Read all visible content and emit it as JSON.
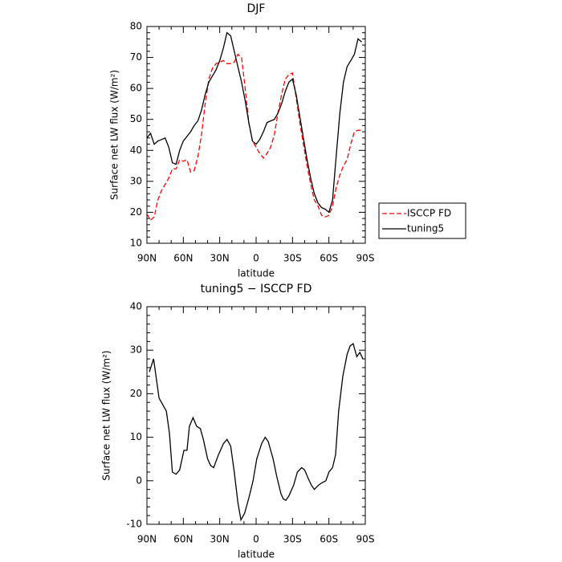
{
  "chart_data": [
    {
      "type": "line",
      "title": "DJF",
      "xlabel": "latitude",
      "ylabel": "Surface net LW flux (W/m²)",
      "xlim": [
        90,
        -90
      ],
      "ylim": [
        10,
        80
      ],
      "xticks": [
        {
          "value": 90,
          "label": "90N"
        },
        {
          "value": 60,
          "label": "60N"
        },
        {
          "value": 30,
          "label": "30N"
        },
        0,
        {
          "value": -30,
          "label": "30S"
        },
        {
          "value": -60,
          "label": "60S"
        },
        {
          "value": -90,
          "label": "90S"
        }
      ],
      "yticks": [
        10,
        20,
        30,
        40,
        50,
        60,
        70,
        80
      ],
      "legend": "right",
      "x": [
        90,
        87,
        84,
        81,
        78,
        75,
        72,
        69,
        66,
        63,
        60,
        57,
        54,
        51,
        48,
        45,
        42,
        39,
        36,
        33,
        30,
        27,
        24,
        21,
        18,
        15,
        12,
        9,
        6,
        3,
        0,
        -3,
        -6,
        -9,
        -12,
        -15,
        -18,
        -21,
        -24,
        -27,
        -30,
        -33,
        -36,
        -39,
        -42,
        -45,
        -48,
        -51,
        -54,
        -57,
        -60,
        -63,
        -66,
        -69,
        -72,
        -75,
        -78,
        -81,
        -84,
        -87
      ],
      "series": [
        {
          "name": "ISCCP FD",
          "color": "#ff0000",
          "dashed": true,
          "values": [
            19.5,
            17.5,
            18.5,
            24,
            27,
            29,
            31,
            34,
            34,
            37,
            36.5,
            37,
            33,
            33.5,
            38,
            45,
            55,
            63,
            66.5,
            68,
            68.5,
            69,
            68,
            68,
            68.5,
            71,
            70,
            60,
            49,
            43,
            41,
            39,
            37.5,
            39,
            41,
            45,
            52,
            58,
            63,
            64.5,
            65,
            57,
            49,
            42,
            35,
            29,
            24,
            22,
            19,
            18.5,
            19,
            22,
            28,
            32,
            35,
            37,
            42,
            46,
            46.5,
            46.5
          ]
        },
        {
          "name": "tuning5",
          "color": "#000000",
          "dashed": false,
          "values": [
            44,
            45.5,
            42,
            43,
            43.5,
            44,
            41,
            36,
            35.5,
            40,
            43,
            44.5,
            46,
            48,
            49.5,
            53,
            58,
            62,
            64,
            66,
            69,
            73,
            78,
            77,
            72,
            67,
            62,
            56,
            49,
            43,
            42,
            43.5,
            46,
            49,
            49.5,
            50,
            52,
            55,
            59,
            62,
            63,
            58,
            51,
            44,
            37,
            31,
            26,
            23,
            21.5,
            21,
            20,
            24,
            38,
            52,
            62,
            67,
            69,
            71,
            76,
            75
          ]
        }
      ]
    },
    {
      "type": "line",
      "title": "tuning5 − ISCCP FD",
      "xlabel": "latitude",
      "ylabel": "Surface net LW flux (W/m²)",
      "xlim": [
        90,
        -90
      ],
      "ylim": [
        -10,
        40
      ],
      "xticks": [
        {
          "value": 90,
          "label": "90N"
        },
        {
          "value": 60,
          "label": "60N"
        },
        {
          "value": 30,
          "label": "30N"
        },
        0,
        {
          "value": -30,
          "label": "30S"
        },
        {
          "value": -60,
          "label": "60S"
        },
        {
          "value": -90,
          "label": "90S"
        }
      ],
      "yticks": [
        -10,
        0,
        10,
        20,
        30,
        40
      ],
      "color": "#000000",
      "x": [
        88,
        84.5,
        80,
        76,
        74,
        71.5,
        69,
        66,
        63,
        59.5,
        57,
        55,
        52,
        49,
        46,
        43.5,
        40,
        37.5,
        35,
        31,
        27,
        24,
        21,
        18,
        15,
        12.5,
        9.5,
        6,
        2.5,
        -0.5,
        -4.5,
        -7.5,
        -10,
        -14,
        -17,
        -20.5,
        -22.5,
        -24.5,
        -27,
        -31,
        -34,
        -37.5,
        -40,
        -43,
        -45.5,
        -48,
        -51.5,
        -54,
        -57.5,
        -60,
        -63,
        -65.5,
        -68,
        -71.5,
        -75,
        -77.5,
        -80,
        -83,
        -85.5,
        -88
      ],
      "values": [
        25,
        28,
        19,
        17,
        16,
        11,
        2,
        1.5,
        2.5,
        7,
        7,
        12.5,
        14.5,
        12.5,
        12,
        9.5,
        5,
        3.5,
        3,
        6,
        8.5,
        9.5,
        8,
        2,
        -5,
        -9,
        -7.5,
        -4,
        0,
        5,
        8.5,
        10,
        9,
        5,
        1,
        -3,
        -4.2,
        -4.5,
        -3.5,
        -1,
        2,
        3,
        2.5,
        0.5,
        -1,
        -2,
        -1,
        -0.5,
        0,
        2,
        3,
        6,
        16,
        24,
        29,
        31,
        31.5,
        28.5,
        29.5,
        28
      ]
    }
  ]
}
